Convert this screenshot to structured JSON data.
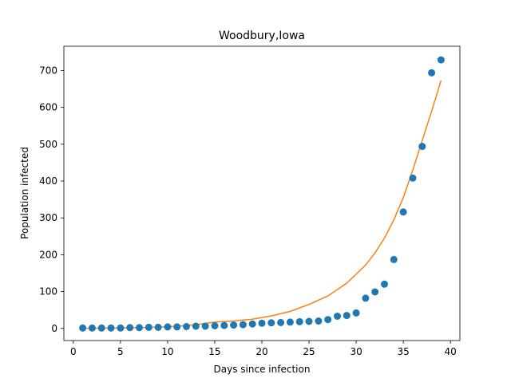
{
  "chart_data": {
    "type": "scatter",
    "title": "Woodbury,Iowa",
    "xlabel": "Days since infection",
    "ylabel": "Population infected",
    "xlim": [
      -1,
      41
    ],
    "ylim": [
      -33,
      766
    ],
    "xticks": [
      0,
      5,
      10,
      15,
      20,
      25,
      30,
      35,
      40
    ],
    "yticks": [
      0,
      100,
      200,
      300,
      400,
      500,
      600,
      700
    ],
    "grid": false,
    "series": [
      {
        "kind": "scatter",
        "color": "#1f77b4",
        "x": [
          1,
          2,
          3,
          4,
          5,
          6,
          7,
          8,
          9,
          10,
          11,
          12,
          13,
          14,
          15,
          16,
          17,
          18,
          19,
          20,
          21,
          22,
          23,
          24,
          25,
          26,
          27,
          28,
          29,
          30,
          31,
          32,
          33,
          34,
          35,
          36,
          37,
          38,
          39
        ],
        "y": [
          1,
          1,
          1,
          1,
          1,
          2,
          2,
          3,
          3,
          4,
          4,
          5,
          6,
          6,
          7,
          8,
          9,
          10,
          12,
          14,
          15,
          16,
          17,
          18,
          19,
          20,
          24,
          33,
          35,
          42,
          82,
          99,
          120,
          187,
          316,
          408,
          494,
          694,
          729
        ]
      },
      {
        "kind": "line",
        "color": "#ff7f0e",
        "x": [
          1,
          3,
          5,
          7,
          9,
          11,
          13,
          15,
          17,
          19,
          21,
          23,
          25,
          27,
          29,
          31,
          32,
          33,
          34,
          35,
          36,
          37,
          38,
          39
        ],
        "y": [
          0.3,
          0.6,
          1.1,
          1.9,
          3.4,
          5.8,
          10,
          17,
          20,
          25,
          34,
          46,
          65,
          88,
          123,
          172,
          205,
          245,
          295,
          355,
          430,
          510,
          590,
          673
        ]
      }
    ]
  }
}
